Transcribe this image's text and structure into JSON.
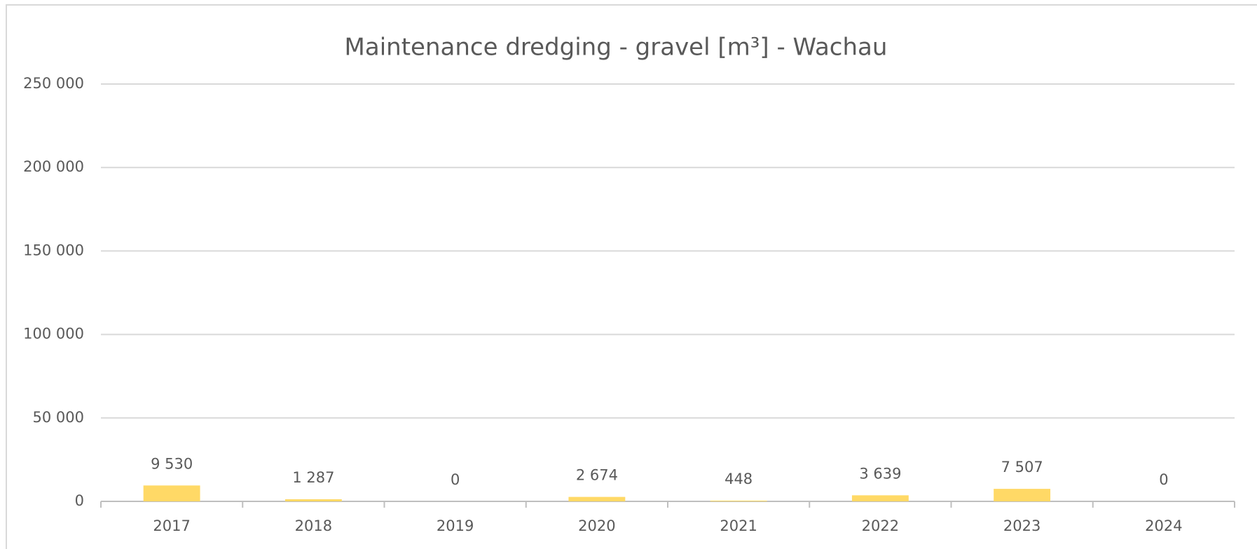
{
  "chart_data": {
    "type": "bar",
    "title": "Maintenance dredging - gravel [m³] - Wachau",
    "categories": [
      "2017",
      "2018",
      "2019",
      "2020",
      "2021",
      "2022",
      "2023",
      "2024"
    ],
    "values": [
      9530,
      1287,
      0,
      2674,
      448,
      3639,
      7507,
      0
    ],
    "value_labels": [
      "9 530",
      "1 287",
      "0",
      "2 674",
      "448",
      "3 639",
      "7 507",
      "0"
    ],
    "color": "#ffd966",
    "ylim": [
      0,
      250000
    ],
    "yticks": [
      0,
      {
        "value": 50000,
        "label": "50 000"
      },
      {
        "value": 100000,
        "label": "100 000"
      },
      {
        "value": 150000,
        "label": "150 000"
      },
      {
        "value": 200000,
        "label": "200 000"
      },
      {
        "value": 250000,
        "label": "250 000"
      }
    ],
    "grid": true
  }
}
